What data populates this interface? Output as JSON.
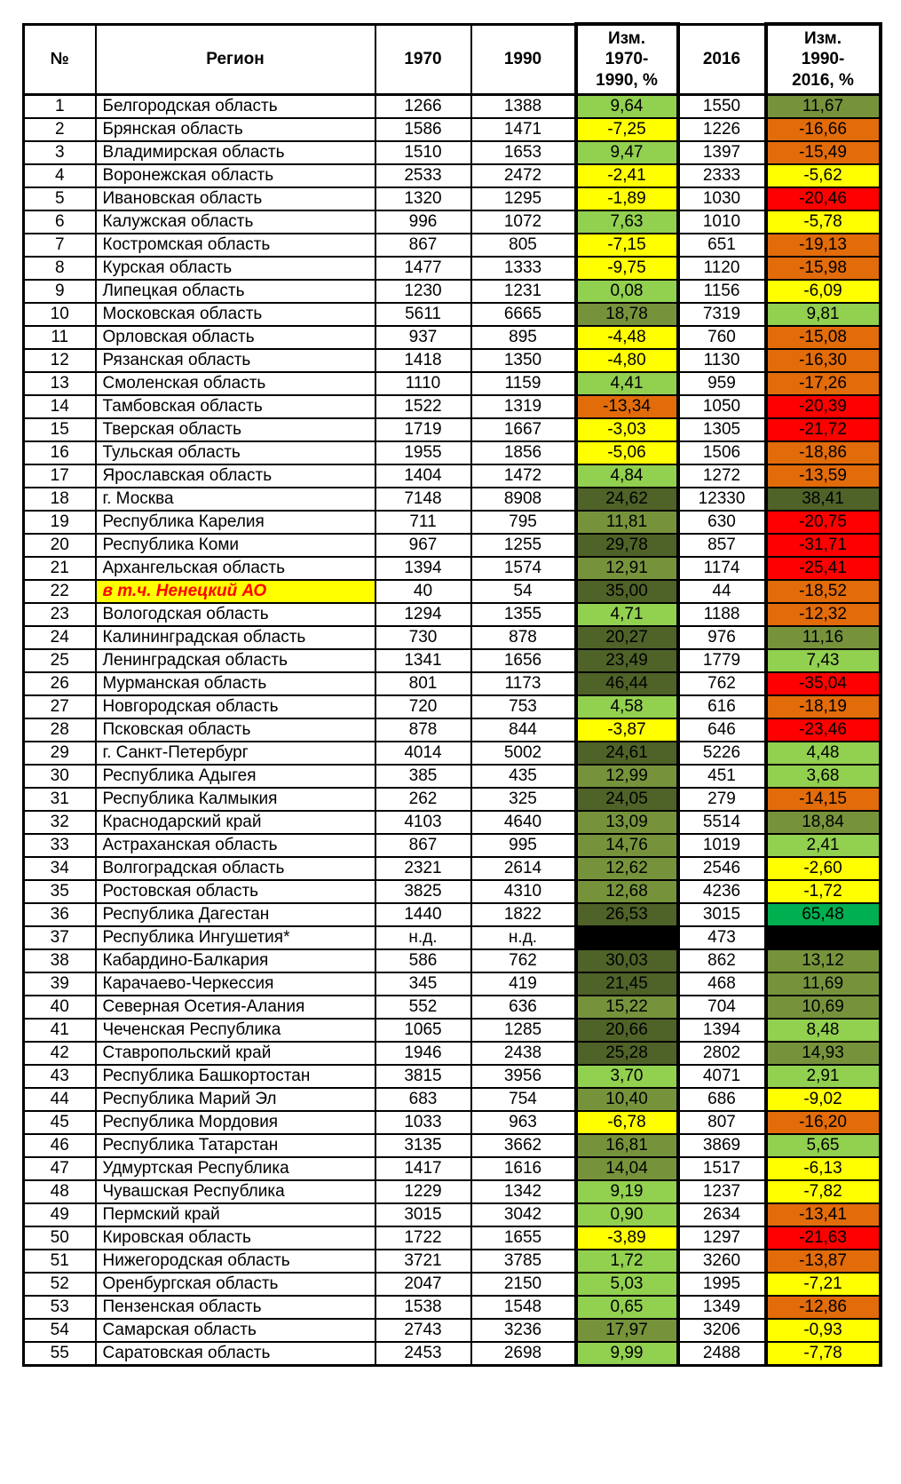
{
  "chart_data": {
    "type": "table",
    "columns": {
      "num": "№",
      "region": "Регион",
      "y1970": "1970",
      "y1990": "1990",
      "chg_1970_1990": "Изм.\n1970-\n1990, %",
      "y2016": "2016",
      "chg_1990_2016": "Изм.\n1990-\n2016, %"
    },
    "rows": [
      {
        "n": "1",
        "region": "Белгородская область",
        "y1970": "1266",
        "y1990": "1388",
        "c1": "9,64",
        "y2016": "1550",
        "c2": "11,67"
      },
      {
        "n": "2",
        "region": "Брянская область",
        "y1970": "1586",
        "y1990": "1471",
        "c1": "-7,25",
        "y2016": "1226",
        "c2": "-16,66"
      },
      {
        "n": "3",
        "region": "Владимирская область",
        "y1970": "1510",
        "y1990": "1653",
        "c1": "9,47",
        "y2016": "1397",
        "c2": "-15,49"
      },
      {
        "n": "4",
        "region": "Воронежская область",
        "y1970": "2533",
        "y1990": "2472",
        "c1": "-2,41",
        "y2016": "2333",
        "c2": "-5,62"
      },
      {
        "n": "5",
        "region": "Ивановская область",
        "y1970": "1320",
        "y1990": "1295",
        "c1": "-1,89",
        "y2016": "1030",
        "c2": "-20,46"
      },
      {
        "n": "6",
        "region": "Калужская область",
        "y1970": "996",
        "y1990": "1072",
        "c1": "7,63",
        "y2016": "1010",
        "c2": "-5,78"
      },
      {
        "n": "7",
        "region": "Костромская область",
        "y1970": "867",
        "y1990": "805",
        "c1": "-7,15",
        "y2016": "651",
        "c2": "-19,13"
      },
      {
        "n": "8",
        "region": "Курская область",
        "y1970": "1477",
        "y1990": "1333",
        "c1": "-9,75",
        "y2016": "1120",
        "c2": "-15,98"
      },
      {
        "n": "9",
        "region": "Липецкая область",
        "y1970": "1230",
        "y1990": "1231",
        "c1": "0,08",
        "y2016": "1156",
        "c2": "-6,09"
      },
      {
        "n": "10",
        "region": "Московская область",
        "y1970": "5611",
        "y1990": "6665",
        "c1": "18,78",
        "y2016": "7319",
        "c2": "9,81"
      },
      {
        "n": "11",
        "region": "Орловская область",
        "y1970": "937",
        "y1990": "895",
        "c1": "-4,48",
        "y2016": "760",
        "c2": "-15,08"
      },
      {
        "n": "12",
        "region": "Рязанская область",
        "y1970": "1418",
        "y1990": "1350",
        "c1": "-4,80",
        "y2016": "1130",
        "c2": "-16,30"
      },
      {
        "n": "13",
        "region": "Смоленская область",
        "y1970": "1110",
        "y1990": "1159",
        "c1": "4,41",
        "y2016": "959",
        "c2": "-17,26"
      },
      {
        "n": "14",
        "region": "Тамбовская область",
        "y1970": "1522",
        "y1990": "1319",
        "c1": "-13,34",
        "y2016": "1050",
        "c2": "-20,39"
      },
      {
        "n": "15",
        "region": "Тверская область",
        "y1970": "1719",
        "y1990": "1667",
        "c1": "-3,03",
        "y2016": "1305",
        "c2": "-21,72"
      },
      {
        "n": "16",
        "region": "Тульская область",
        "y1970": "1955",
        "y1990": "1856",
        "c1": "-5,06",
        "y2016": "1506",
        "c2": "-18,86"
      },
      {
        "n": "17",
        "region": "Ярославская область",
        "y1970": "1404",
        "y1990": "1472",
        "c1": "4,84",
        "y2016": "1272",
        "c2": "-13,59"
      },
      {
        "n": "18",
        "region": "г. Москва",
        "y1970": "7148",
        "y1990": "8908",
        "c1": "24,62",
        "y2016": "12330",
        "c2": "38,41"
      },
      {
        "n": "19",
        "region": "Республика Карелия",
        "y1970": "711",
        "y1990": "795",
        "c1": "11,81",
        "y2016": "630",
        "c2": "-20,75"
      },
      {
        "n": "20",
        "region": "Республика Коми",
        "y1970": "967",
        "y1990": "1255",
        "c1": "29,78",
        "y2016": "857",
        "c2": "-31,71"
      },
      {
        "n": "21",
        "region": "Архангельская область",
        "y1970": "1394",
        "y1990": "1574",
        "c1": "12,91",
        "y2016": "1174",
        "c2": "-25,41"
      },
      {
        "n": "22",
        "region": "в т.ч. Ненецкий АО",
        "y1970": "40",
        "y1990": "54",
        "c1": "35,00",
        "y2016": "44",
        "c2": "-18,52",
        "hl": true
      },
      {
        "n": "23",
        "region": "Вологодская область",
        "y1970": "1294",
        "y1990": "1355",
        "c1": "4,71",
        "y2016": "1188",
        "c2": "-12,32"
      },
      {
        "n": "24",
        "region": "Калининградская область",
        "y1970": "730",
        "y1990": "878",
        "c1": "20,27",
        "y2016": "976",
        "c2": "11,16"
      },
      {
        "n": "25",
        "region": "Ленинградская область",
        "y1970": "1341",
        "y1990": "1656",
        "c1": "23,49",
        "y2016": "1779",
        "c2": "7,43"
      },
      {
        "n": "26",
        "region": "Мурманская область",
        "y1970": "801",
        "y1990": "1173",
        "c1": "46,44",
        "y2016": "762",
        "c2": "-35,04"
      },
      {
        "n": "27",
        "region": "Новгородская область",
        "y1970": "720",
        "y1990": "753",
        "c1": "4,58",
        "y2016": "616",
        "c2": "-18,19"
      },
      {
        "n": "28",
        "region": "Псковская область",
        "y1970": "878",
        "y1990": "844",
        "c1": "-3,87",
        "y2016": "646",
        "c2": "-23,46"
      },
      {
        "n": "29",
        "region": "г. Санкт-Петербург",
        "y1970": "4014",
        "y1990": "5002",
        "c1": "24,61",
        "y2016": "5226",
        "c2": "4,48"
      },
      {
        "n": "30",
        "region": "Республика Адыгея",
        "y1970": "385",
        "y1990": "435",
        "c1": "12,99",
        "y2016": "451",
        "c2": "3,68"
      },
      {
        "n": "31",
        "region": "Республика Калмыкия",
        "y1970": "262",
        "y1990": "325",
        "c1": "24,05",
        "y2016": "279",
        "c2": "-14,15"
      },
      {
        "n": "32",
        "region": "Краснодарский край",
        "y1970": "4103",
        "y1990": "4640",
        "c1": "13,09",
        "y2016": "5514",
        "c2": "18,84"
      },
      {
        "n": "33",
        "region": "Астраханская область",
        "y1970": "867",
        "y1990": "995",
        "c1": "14,76",
        "y2016": "1019",
        "c2": "2,41"
      },
      {
        "n": "34",
        "region": "Волгоградская область",
        "y1970": "2321",
        "y1990": "2614",
        "c1": "12,62",
        "y2016": "2546",
        "c2": "-2,60"
      },
      {
        "n": "35",
        "region": "Ростовская область",
        "y1970": "3825",
        "y1990": "4310",
        "c1": "12,68",
        "y2016": "4236",
        "c2": "-1,72"
      },
      {
        "n": "36",
        "region": "Республика Дагестан",
        "y1970": "1440",
        "y1990": "1822",
        "c1": "26,53",
        "y2016": "3015",
        "c2": "65,48"
      },
      {
        "n": "37",
        "region": "Республика Ингушетия*",
        "y1970": "н.д.",
        "y1990": "н.д.",
        "c1": null,
        "y2016": "473",
        "c2": null
      },
      {
        "n": "38",
        "region": "Кабардино-Балкария",
        "y1970": "586",
        "y1990": "762",
        "c1": "30,03",
        "y2016": "862",
        "c2": "13,12"
      },
      {
        "n": "39",
        "region": "Карачаево-Черкессия",
        "y1970": "345",
        "y1990": "419",
        "c1": "21,45",
        "y2016": "468",
        "c2": "11,69"
      },
      {
        "n": "40",
        "region": "Северная Осетия-Алания",
        "y1970": "552",
        "y1990": "636",
        "c1": "15,22",
        "y2016": "704",
        "c2": "10,69"
      },
      {
        "n": "41",
        "region": "Чеченская Республика",
        "y1970": "1065",
        "y1990": "1285",
        "c1": "20,66",
        "y2016": "1394",
        "c2": "8,48"
      },
      {
        "n": "42",
        "region": "Ставропольский край",
        "y1970": "1946",
        "y1990": "2438",
        "c1": "25,28",
        "y2016": "2802",
        "c2": "14,93"
      },
      {
        "n": "43",
        "region": "Республика Башкортостан",
        "y1970": "3815",
        "y1990": "3956",
        "c1": "3,70",
        "y2016": "4071",
        "c2": "2,91"
      },
      {
        "n": "44",
        "region": "Республика Марий Эл",
        "y1970": "683",
        "y1990": "754",
        "c1": "10,40",
        "y2016": "686",
        "c2": "-9,02"
      },
      {
        "n": "45",
        "region": "Республика Мордовия",
        "y1970": "1033",
        "y1990": "963",
        "c1": "-6,78",
        "y2016": "807",
        "c2": "-16,20"
      },
      {
        "n": "46",
        "region": "Республика Татарстан",
        "y1970": "3135",
        "y1990": "3662",
        "c1": "16,81",
        "y2016": "3869",
        "c2": "5,65"
      },
      {
        "n": "47",
        "region": "Удмуртская Республика",
        "y1970": "1417",
        "y1990": "1616",
        "c1": "14,04",
        "y2016": "1517",
        "c2": "-6,13"
      },
      {
        "n": "48",
        "region": "Чувашская Республика",
        "y1970": "1229",
        "y1990": "1342",
        "c1": "9,19",
        "y2016": "1237",
        "c2": "-7,82"
      },
      {
        "n": "49",
        "region": "Пермский край",
        "y1970": "3015",
        "y1990": "3042",
        "c1": "0,90",
        "y2016": "2634",
        "c2": "-13,41"
      },
      {
        "n": "50",
        "region": "Кировская область",
        "y1970": "1722",
        "y1990": "1655",
        "c1": "-3,89",
        "y2016": "1297",
        "c2": "-21,63"
      },
      {
        "n": "51",
        "region": "Нижегородская область",
        "y1970": "3721",
        "y1990": "3785",
        "c1": "1,72",
        "y2016": "3260",
        "c2": "-13,87"
      },
      {
        "n": "52",
        "region": "Оренбургская область",
        "y1970": "2047",
        "y1990": "2150",
        "c1": "5,03",
        "y2016": "1995",
        "c2": "-7,21"
      },
      {
        "n": "53",
        "region": "Пензенская область",
        "y1970": "1538",
        "y1990": "1548",
        "c1": "0,65",
        "y2016": "1349",
        "c2": "-12,86"
      },
      {
        "n": "54",
        "region": "Самарская область",
        "y1970": "2743",
        "y1990": "3236",
        "c1": "17,97",
        "y2016": "3206",
        "c2": "-0,93"
      },
      {
        "n": "55",
        "region": "Саратовская область",
        "y1970": "2453",
        "y1990": "2698",
        "c1": "9,99",
        "y2016": "2488",
        "c2": "-7,78"
      }
    ]
  },
  "color_scale": {
    "pos_0_10": "#92D050",
    "pos_10_20": "#76933C",
    "pos_20_50": "#4F6228",
    "pos_over_50": "#00B050",
    "neg_0_10": "#FFFF00",
    "neg_10_20": "#E26B0A",
    "neg_over_20": "#FF0000",
    "no_data": "#000000",
    "highlight_row_bg": "#FFFF00",
    "highlight_row_text": "#FF0000"
  }
}
